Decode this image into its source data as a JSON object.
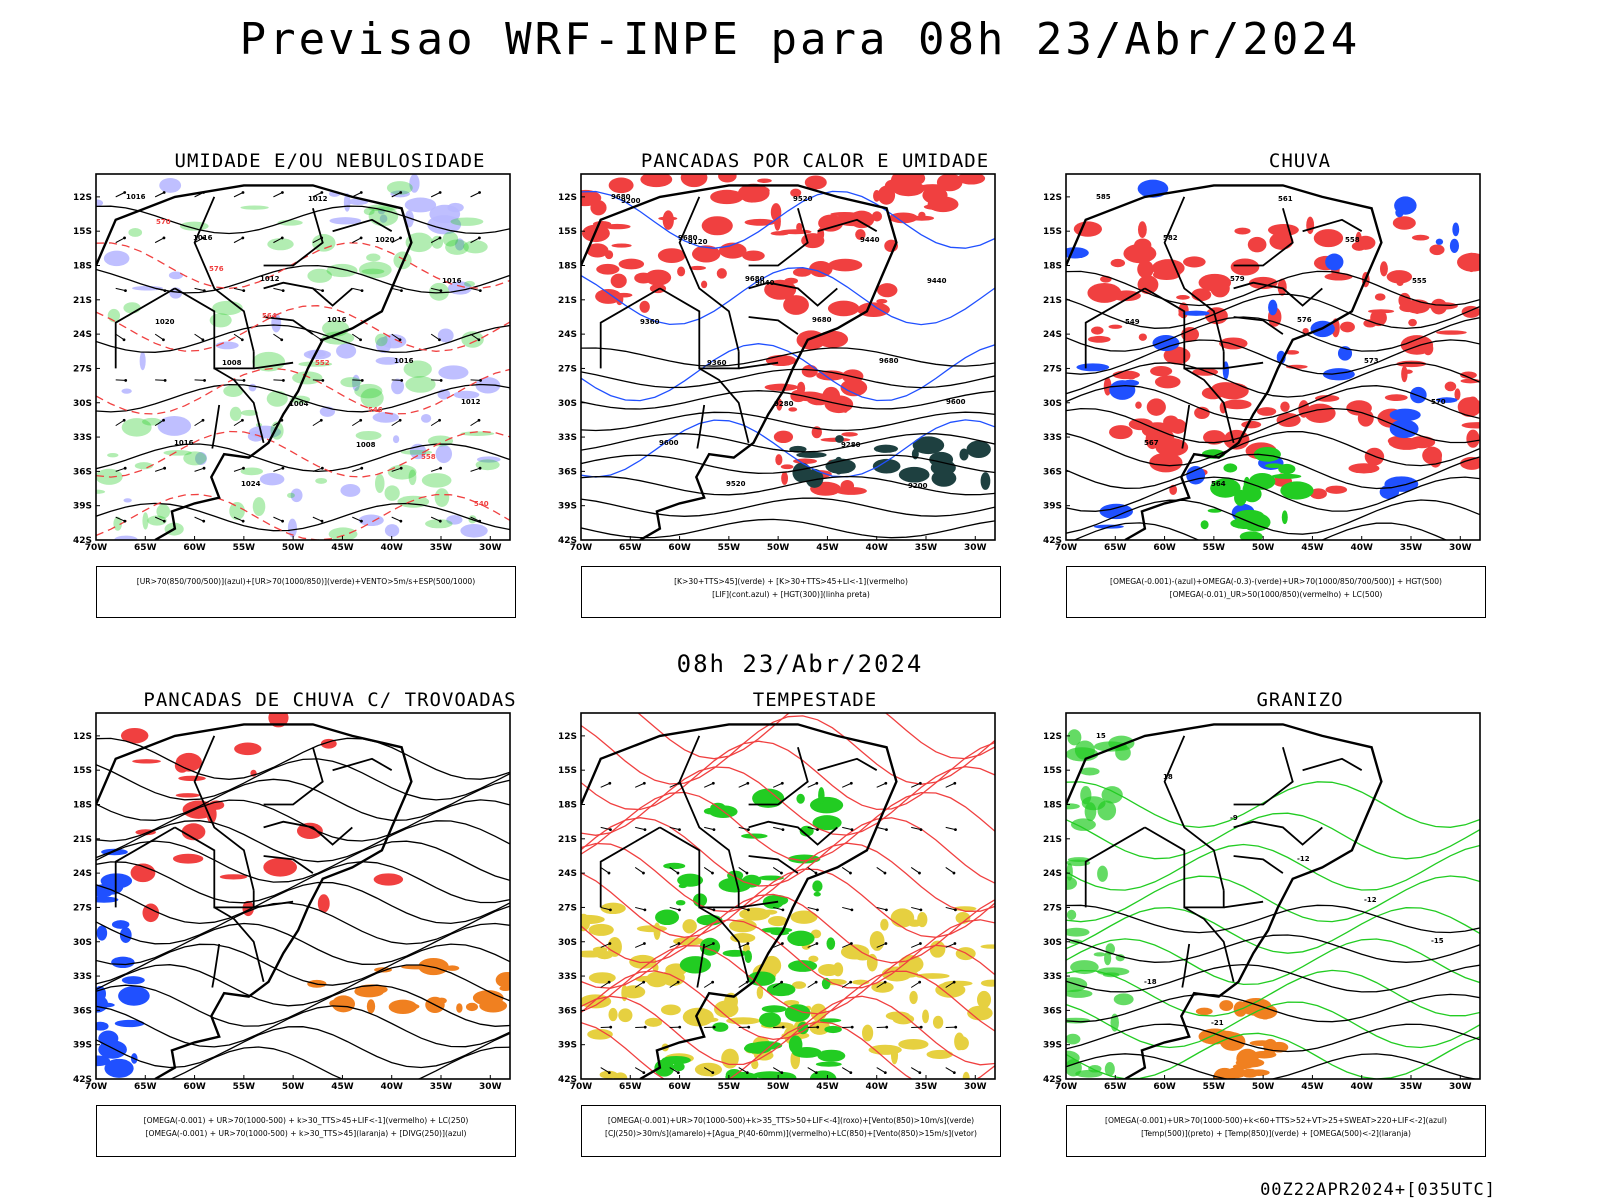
{
  "header": {
    "title": "Previsao WRF-INPE  para 08h 23/Abr/2024",
    "subtitle": "08h 23/Abr/2024",
    "run_code": "00Z22APR2024+[035UTC]"
  },
  "colors": {
    "blue_fill": "#b8b8ff",
    "green": "#22cc22",
    "red": "#f04040",
    "dark_teal": "#1e4040",
    "orange": "#f08020",
    "yellow": "#e6d040",
    "blue": "#2050ff",
    "black": "#000000"
  },
  "axes": {
    "lat_labels": [
      "12S",
      "15S",
      "18S",
      "21S",
      "24S",
      "27S",
      "30S",
      "33S",
      "36S",
      "39S",
      "42S"
    ],
    "lon_labels": [
      "70W",
      "65W",
      "60W",
      "55W",
      "50W",
      "45W",
      "40W",
      "35W",
      "30W"
    ]
  },
  "chart_data": [
    {
      "type": "map",
      "title": "UMIDADE E/OU NEBULOSIDADE",
      "legend": [
        "[UR>70(850/700/500)](azul)+[UR>70(1000/850)](verde)+VENTO>5m/s+ESP(500/1000)"
      ],
      "xlim": [
        -70,
        -28
      ],
      "ylim": [
        -42,
        -10
      ],
      "fields": [
        "humidity_blue",
        "humidity_green",
        "wind_vectors",
        "thickness_red_dashed",
        "pressure_contours"
      ],
      "contour_labels": [
        "1016",
        "1016",
        "1012",
        "1016",
        "1016",
        "1012",
        "1016",
        "1024",
        "1012",
        "1020",
        "1016",
        "1020",
        "1008",
        "1004",
        "1008"
      ],
      "thickness_labels": [
        "570",
        "576",
        "564",
        "552",
        "546",
        "558",
        "540"
      ]
    },
    {
      "type": "map",
      "title": "PANCADAS POR CALOR E UMIDADE",
      "legend": [
        "[K>30+TTS>45](verde) + [K>30+TTS>45+LI<-1](vermelho)",
        "[LIF](cont.azul) + [HGT(300)](linha preta)"
      ],
      "xlim": [
        -70,
        -28
      ],
      "ylim": [
        -42,
        -10
      ],
      "fields": [
        "instability_red",
        "instability_teal",
        "lifted_index_blue",
        "hgt300_contours"
      ],
      "contour_labels": [
        "9680",
        "9680",
        "9680",
        "9680",
        "9680",
        "9600",
        "9600",
        "9520",
        "9520",
        "9440",
        "9440",
        "9360",
        "9360",
        "9280",
        "9280",
        "9200",
        "9200",
        "9120",
        "9040"
      ]
    },
    {
      "type": "map",
      "title": "CHUVA",
      "legend": [
        "[OMEGA(-0.001)-(azul)+OMEGA(-0.3)-(verde)+UR>70(1000/850/700/500)] + HGT(500)",
        "[OMEGA(-0.01)_UR>50(1000/850)(vermelho) + LC(500)"
      ],
      "xlim": [
        -70,
        -28
      ],
      "ylim": [
        -42,
        -10
      ],
      "fields": [
        "omega_blue",
        "omega_green",
        "rain_red",
        "hgt500_contours",
        "streamlines"
      ],
      "contour_labels": [
        "585",
        "582",
        "579",
        "576",
        "573",
        "570",
        "567",
        "564",
        "561",
        "558",
        "555",
        "549"
      ]
    },
    {
      "type": "map",
      "title": "PANCADAS DE CHUVA C/ TROVOADAS",
      "legend": [
        "[OMEGA(-0.001) + UR>70(1000-500) + k>30_TTS>45+LIF<-1](vermelho) + LC(250)",
        "[OMEGA(-0.001) + UR>70(1000-500) + k>30_TTS>45](laranja) + [DIVG(250)](azul)"
      ],
      "xlim": [
        -70,
        -28
      ],
      "ylim": [
        -42,
        -10
      ],
      "fields": [
        "storms_red",
        "storms_orange",
        "divergence_blue",
        "streamlines_250"
      ]
    },
    {
      "type": "map",
      "title": "TEMPESTADE",
      "legend": [
        "[OMEGA(-0.001)+UR>70(1000-500)+k>35_TTS>50+LIF<-4](roxo)+[Vento(850)>10m/s](verde)",
        "[CJ(250)>30m/s](amarelo)+[Agua_P(40-60mm)](vermelho)+LC(850)+[Vento(850)>15m/s](vetor)"
      ],
      "xlim": [
        -70,
        -28
      ],
      "ylim": [
        -42,
        -10
      ],
      "fields": [
        "jet_yellow",
        "wind850_green",
        "pw_red_contours",
        "wind_vectors"
      ]
    },
    {
      "type": "map",
      "title": "GRANIZO",
      "legend": [
        "[OMEGA(-0.001)+UR>70(1000-500)+k<60+TTS>52+VT>25+SWEAT>220+LIF<-2](azul)",
        "[Temp(500)](preto) + [Temp(850)](verde) + [OMEGA(500)<-2](laranja)"
      ],
      "xlim": [
        -70,
        -28
      ],
      "ylim": [
        -42,
        -10
      ],
      "fields": [
        "hail_orange",
        "temp500_black",
        "temp850_green"
      ],
      "contour_labels": [
        "15",
        "18",
        "-9",
        "-12",
        "-12",
        "-15",
        "-18",
        "-21"
      ]
    }
  ]
}
